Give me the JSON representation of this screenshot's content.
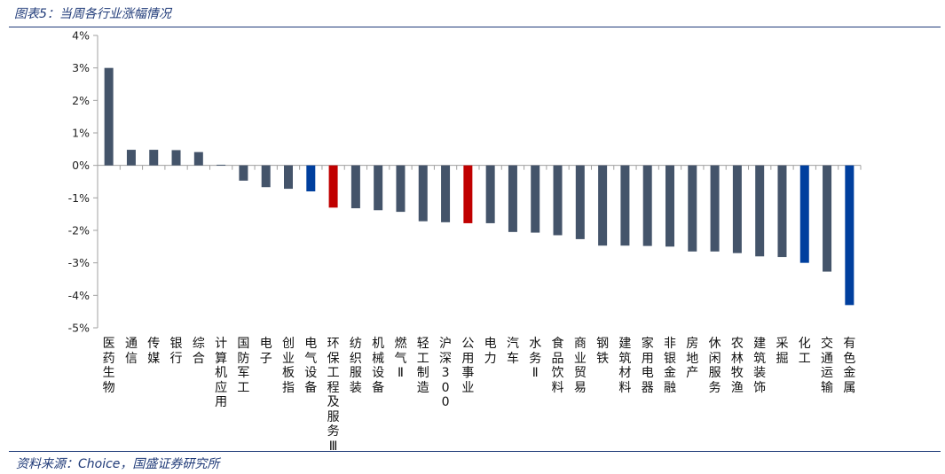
{
  "header": {
    "title": "图表5：当周各行业涨幅情况"
  },
  "footer": {
    "source": "资料来源：Choice，国盛证券研究所"
  },
  "colors": {
    "default_bar": "#44546a",
    "highlight_red": "#c00000",
    "highlight_blue": "#003f9e",
    "rule": "#1f3a78"
  },
  "chart_data": {
    "type": "bar",
    "title": "",
    "xlabel": "",
    "ylabel": "",
    "ylim": [
      -5,
      4
    ],
    "yticks": [
      "4%",
      "3%",
      "2%",
      "1%",
      "0%",
      "-1%",
      "-2%",
      "-3%",
      "-4%",
      "-5%"
    ],
    "grid": false,
    "categories": [
      "医药生物",
      "通信",
      "传媒",
      "银行",
      "综合",
      "计算机应用",
      "国防军工",
      "电子",
      "创业板指",
      "电气设备",
      "环保工程及服务Ⅲ",
      "纺织服装",
      "机械设备",
      "燃气Ⅱ",
      "轻工制造",
      "沪深300",
      "公用事业",
      "电力",
      "汽车",
      "水务Ⅱ",
      "食品饮料",
      "商业贸易",
      "钢铁",
      "建筑材料",
      "家用电器",
      "非银金融",
      "房地产",
      "休闲服务",
      "农林牧渔",
      "建筑装饰",
      "采掘",
      "化工",
      "交通运输",
      "有色金属"
    ],
    "values": [
      3.0,
      0.48,
      0.48,
      0.47,
      0.41,
      0.02,
      -0.47,
      -0.67,
      -0.72,
      -0.8,
      -1.3,
      -1.32,
      -1.38,
      -1.43,
      -1.72,
      -1.75,
      -1.78,
      -1.78,
      -2.05,
      -2.07,
      -2.15,
      -2.27,
      -2.47,
      -2.47,
      -2.48,
      -2.5,
      -2.65,
      -2.65,
      -2.7,
      -2.8,
      -2.82,
      -3.0,
      -3.27,
      -4.3
    ],
    "bar_colors": [
      "#44546a",
      "#44546a",
      "#44546a",
      "#44546a",
      "#44546a",
      "#44546a",
      "#44546a",
      "#44546a",
      "#44546a",
      "#003f9e",
      "#c00000",
      "#44546a",
      "#44546a",
      "#44546a",
      "#44546a",
      "#44546a",
      "#c00000",
      "#44546a",
      "#44546a",
      "#44546a",
      "#44546a",
      "#44546a",
      "#44546a",
      "#44546a",
      "#44546a",
      "#44546a",
      "#44546a",
      "#44546a",
      "#44546a",
      "#44546a",
      "#44546a",
      "#003f9e",
      "#44546a",
      "#003f9e"
    ]
  }
}
